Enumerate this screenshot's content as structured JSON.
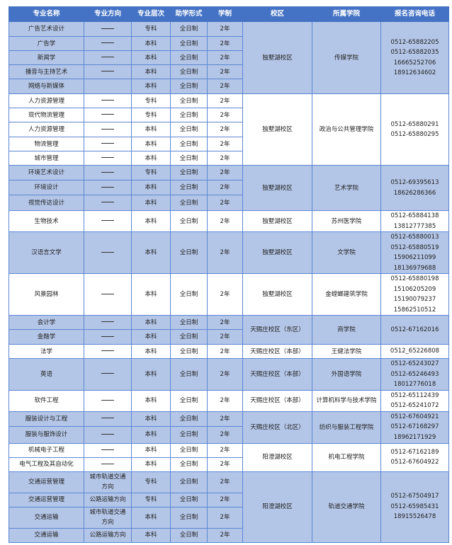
{
  "headers": [
    "专业名称",
    "专业方向",
    "专业层次",
    "助学形式",
    "学制",
    "校区",
    "所属学院",
    "报名咨询电话"
  ],
  "colors": {
    "header": "#4472c4",
    "band": "#b4c6e7",
    "border": "#5b86d4"
  },
  "groups": [
    {
      "band": "blue",
      "campus": "独墅湖校区",
      "college": "传媒学院",
      "phones": [
        "0512-65882205",
        "0512-65882035",
        "16665252706",
        "18912634602"
      ],
      "majors": [
        {
          "name": "广告艺术设计",
          "direction": "—",
          "level": "专科",
          "form": "全日制",
          "years": "2年"
        },
        {
          "name": "广告学",
          "direction": "—",
          "level": "本科",
          "form": "全日制",
          "years": "2年"
        },
        {
          "name": "新闻学",
          "direction": "—",
          "level": "本科",
          "form": "全日制",
          "years": "2年"
        },
        {
          "name": "播音与主持艺术",
          "direction": "—",
          "level": "本科",
          "form": "全日制",
          "years": "2年"
        },
        {
          "name": "网络与新媒体",
          "direction": "",
          "level": "本科",
          "form": "全日制",
          "years": "2年"
        }
      ]
    },
    {
      "band": "white",
      "campus": "独墅湖校区",
      "college": "政治与公共管理学院",
      "phones": [
        "0512-65880291",
        "0512-65880295"
      ],
      "majors": [
        {
          "name": "人力资源管理",
          "direction": "—",
          "level": "专科",
          "form": "全日制",
          "years": "2年"
        },
        {
          "name": "现代物流管理",
          "direction": "—",
          "level": "专科",
          "form": "全日制",
          "years": "2年"
        },
        {
          "name": "人力资源管理",
          "direction": "—",
          "level": "本科",
          "form": "全日制",
          "years": "2年"
        },
        {
          "name": "物流管理",
          "direction": "—",
          "level": "本科",
          "form": "全日制",
          "years": "2年"
        },
        {
          "name": "城市管理",
          "direction": "—",
          "level": "本科",
          "form": "全日制",
          "years": "2年"
        }
      ]
    },
    {
      "band": "blue",
      "campus": "独墅湖校区",
      "college": "艺术学院",
      "phones": [
        "0512-69395613",
        "18626286366"
      ],
      "majors": [
        {
          "name": "环境艺术设计",
          "direction": "—",
          "level": "专科",
          "form": "全日制",
          "years": "2年"
        },
        {
          "name": "环境设计",
          "direction": "—",
          "level": "本科",
          "form": "全日制",
          "years": "2年"
        },
        {
          "name": "视觉传达设计",
          "direction": "—",
          "level": "本科",
          "form": "全日制",
          "years": "2年"
        }
      ]
    },
    {
      "band": "white",
      "campus": "独墅湖校区",
      "college": "苏州医学院",
      "phones": [
        "0512-65884138",
        "13812777385"
      ],
      "majors": [
        {
          "name": "生物技术",
          "direction": "—",
          "level": "本科",
          "form": "全日制",
          "years": "2年"
        }
      ]
    },
    {
      "band": "blue",
      "campus": "独墅湖校区",
      "college": "文学院",
      "phones": [
        "0512-65880013",
        "0512-65880519",
        "15906211099",
        "18136979688"
      ],
      "majors": [
        {
          "name": "汉语言文学",
          "direction": "—",
          "level": "本科",
          "form": "全日制",
          "years": "2年"
        }
      ]
    },
    {
      "band": "white",
      "campus": "独墅湖校区",
      "college": "金螳螂建筑学院",
      "phones": [
        "0512-65880198",
        "15106205209",
        "15190079237",
        "15862510512"
      ],
      "majors": [
        {
          "name": "风景园林",
          "direction": "—",
          "level": "本科",
          "form": "全日制",
          "years": "2年"
        }
      ]
    },
    {
      "band": "blue",
      "campus": "天赐庄校区（东区）",
      "college": "商学院",
      "phones": [
        "0512-67162016"
      ],
      "majors": [
        {
          "name": "会计学",
          "direction": "—",
          "level": "本科",
          "form": "全日制",
          "years": "2年"
        },
        {
          "name": "金融学",
          "direction": "—",
          "level": "本科",
          "form": "全日制",
          "years": "2年"
        }
      ]
    },
    {
      "band": "white",
      "campus": "天赐庄校区（本部）",
      "college": "王健法学院",
      "phones": [
        "0512_65226808"
      ],
      "majors": [
        {
          "name": "法学",
          "direction": "—",
          "level": "本科",
          "form": "全日制",
          "years": "2年"
        }
      ]
    },
    {
      "band": "blue",
      "campus": "天赐庄校区（本部）",
      "college": "外国语学院",
      "phones": [
        "0512-65243027",
        "0512-65246493",
        "18012776018"
      ],
      "majors": [
        {
          "name": "英语",
          "direction": "—",
          "level": "本科",
          "form": "全日制",
          "years": "2年"
        }
      ]
    },
    {
      "band": "white",
      "campus": "天赐庄校区（本部）",
      "college": "计算机科学与技术学院",
      "phones": [
        "0512-65112439",
        "0512-65241072"
      ],
      "majors": [
        {
          "name": "软件工程",
          "direction": "—",
          "level": "本科",
          "form": "全日制",
          "years": "2年"
        }
      ]
    },
    {
      "band": "blue",
      "campus": "天赐庄校区（北区）",
      "college": "纺织与服装工程学院",
      "phones": [
        "0512-67604921",
        "0512-67168297",
        "18962171929"
      ],
      "majors": [
        {
          "name": "服装设计与工程",
          "direction": "—",
          "level": "本科",
          "form": "全日制",
          "years": "2年"
        },
        {
          "name": "服装与服饰设计",
          "direction": "—",
          "level": "本科",
          "form": "全日制",
          "years": "2年"
        }
      ]
    },
    {
      "band": "white",
      "campus": "阳澄湖校区",
      "college": "机电工程学院",
      "phones": [
        "0512-67162189",
        "0512-67604922"
      ],
      "majors": [
        {
          "name": "机械电子工程",
          "direction": "—",
          "level": "本科",
          "form": "全日制",
          "years": "2年"
        },
        {
          "name": "电气工程及其自动化",
          "direction": "—",
          "level": "本科",
          "form": "全日制",
          "years": "2年"
        }
      ]
    },
    {
      "band": "blue",
      "campus": "阳澄湖校区",
      "college": "轨道交通学院",
      "phones": [
        "0512-67504917",
        "0512-65985431",
        "18915526478"
      ],
      "majors": [
        {
          "name": "交通运营管理",
          "direction": "城市轨道交通方向",
          "level": "专科",
          "form": "全日制",
          "years": "2年"
        },
        {
          "name": "交通运营管理",
          "direction": "公路运输方向",
          "level": "专科",
          "form": "全日制",
          "years": "2年"
        },
        {
          "name": "交通运输",
          "direction": "城市轨道交通方向",
          "level": "本科",
          "form": "全日制",
          "years": "2年"
        },
        {
          "name": "交通运输",
          "direction": "公路运输方向",
          "level": "本科",
          "form": "全日制",
          "years": "2年"
        }
      ]
    }
  ]
}
